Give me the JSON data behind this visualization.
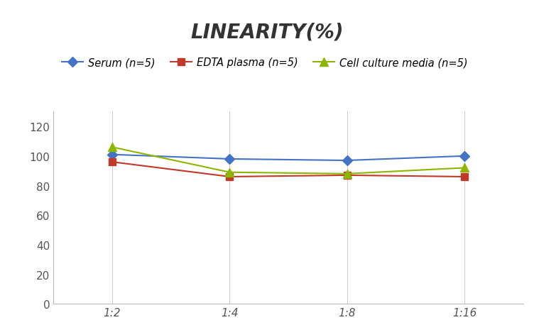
{
  "title": "LINEARITY(%)",
  "x_labels": [
    "1:2",
    "1:4",
    "1:8",
    "1:16"
  ],
  "x_positions": [
    0,
    1,
    2,
    3
  ],
  "series": [
    {
      "label": "Serum (n=5)",
      "color": "#4472C4",
      "marker": "D",
      "markersize": 7,
      "values": [
        101,
        98,
        97,
        100
      ]
    },
    {
      "label": "EDTA plasma (n=5)",
      "color": "#C0392B",
      "marker": "s",
      "markersize": 7,
      "values": [
        96,
        86,
        87,
        86
      ]
    },
    {
      "label": "Cell culture media (n=5)",
      "color": "#8DB600",
      "marker": "^",
      "markersize": 8,
      "values": [
        106,
        89,
        88,
        92
      ]
    }
  ],
  "ylim": [
    0,
    130
  ],
  "yticks": [
    0,
    20,
    40,
    60,
    80,
    100,
    120
  ],
  "grid_color": "#CCCCCC",
  "background_color": "#FFFFFF",
  "title_fontsize": 20,
  "legend_fontsize": 10.5,
  "tick_fontsize": 11
}
